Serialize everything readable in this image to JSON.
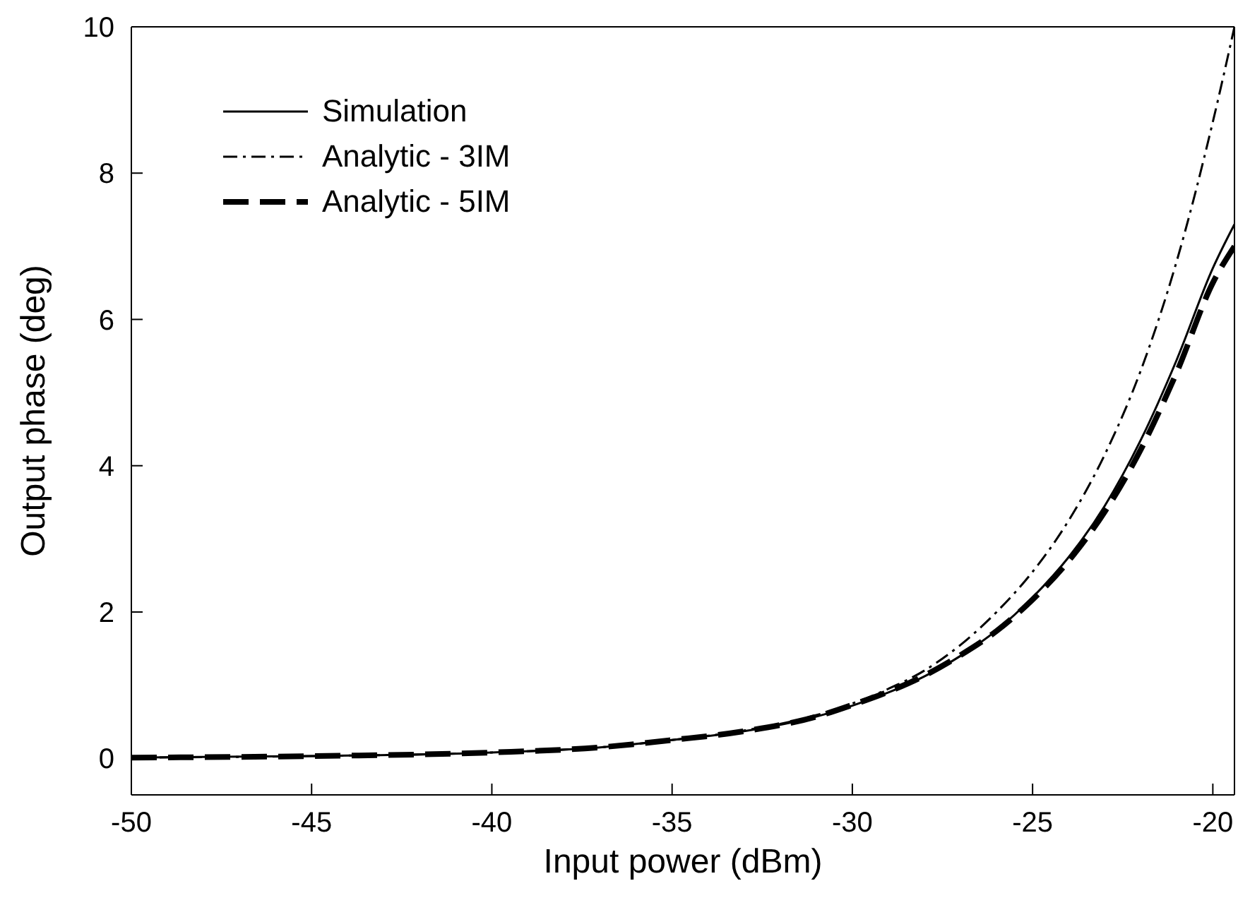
{
  "chart_data": {
    "type": "line",
    "xlabel": "Input power (dBm)",
    "ylabel": "Output phase (deg)",
    "xlim": [
      -50,
      -19.4
    ],
    "ylim": [
      -0.5,
      10
    ],
    "xticks": [
      -50,
      -45,
      -40,
      -35,
      -30,
      -25,
      -20
    ],
    "yticks": [
      0,
      2,
      4,
      6,
      8,
      10
    ],
    "legend": "top left",
    "marker": "none",
    "series": [
      {
        "name": "Simulation",
        "color": "#000000",
        "line_style": "solid",
        "x": [
          -50,
          -45,
          -40,
          -37,
          -35,
          -33,
          -31,
          -30,
          -29,
          -28,
          -27,
          -26,
          -25,
          -24,
          -23,
          -22,
          -21,
          -20,
          -19.4
        ],
        "values": [
          0.01,
          0.03,
          0.08,
          0.15,
          0.25,
          0.37,
          0.57,
          0.72,
          0.9,
          1.12,
          1.4,
          1.75,
          2.2,
          2.75,
          3.45,
          4.35,
          5.45,
          6.7,
          7.3
        ]
      },
      {
        "name": "Analytic - 3IM",
        "color": "#000000",
        "line_style": "dashdot",
        "x": [
          -50,
          -45,
          -40,
          -37,
          -35,
          -33,
          -31,
          -30,
          -29,
          -28,
          -27,
          -26,
          -25,
          -24,
          -23,
          -22,
          -21,
          -20,
          -19.4
        ],
        "values": [
          0.01,
          0.03,
          0.08,
          0.15,
          0.25,
          0.38,
          0.59,
          0.75,
          0.95,
          1.2,
          1.55,
          2.0,
          2.55,
          3.25,
          4.15,
          5.3,
          6.8,
          8.7,
          10
        ]
      },
      {
        "name": "Analytic - 5IM",
        "color": "#000000",
        "line_style": "dashed",
        "x": [
          -50,
          -45,
          -40,
          -37,
          -35,
          -33,
          -31,
          -30,
          -29,
          -28,
          -27,
          -26,
          -25,
          -24,
          -23,
          -22,
          -21,
          -20,
          -19.4
        ],
        "values": [
          0.01,
          0.03,
          0.08,
          0.15,
          0.25,
          0.37,
          0.57,
          0.73,
          0.91,
          1.13,
          1.41,
          1.74,
          2.17,
          2.7,
          3.37,
          4.22,
          5.28,
          6.5,
          7.0
        ]
      }
    ]
  }
}
